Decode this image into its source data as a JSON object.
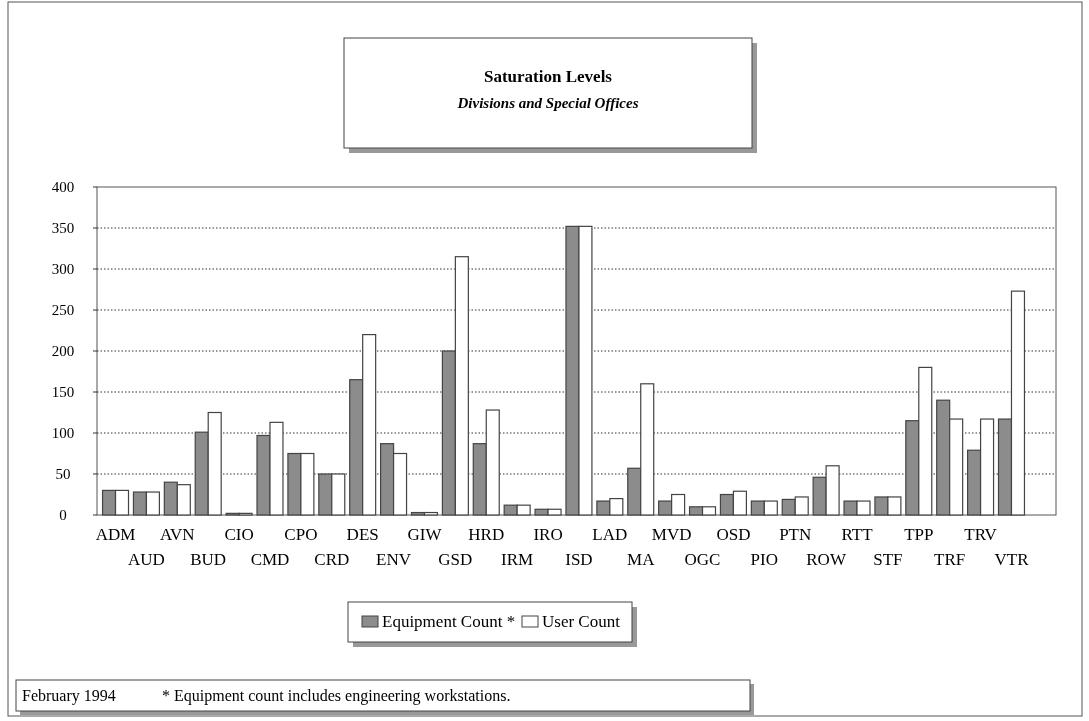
{
  "chart_data": {
    "type": "bar",
    "title": "Saturation Levels",
    "subtitle": "Divisions and Special Offices",
    "categories": [
      "ADM",
      "AUD",
      "AVN",
      "BUD",
      "CIO",
      "CMD",
      "CPO",
      "CRD",
      "DES",
      "ENV",
      "GIW",
      "GSD",
      "HRD",
      "IRM",
      "IRO",
      "ISD",
      "LAD",
      "MA",
      "MVD",
      "OGC",
      "OSD",
      "PIO",
      "PTN",
      "ROW",
      "RTT",
      "STF",
      "TPP",
      "TRF",
      "TRV",
      "VTR"
    ],
    "series": [
      {
        "name": "Equipment Count *",
        "color": "#8c8c8c",
        "values": [
          30,
          28,
          40,
          101,
          2,
          97,
          75,
          50,
          165,
          87,
          3,
          200,
          87,
          12,
          7,
          352,
          17,
          57,
          17,
          10,
          25,
          17,
          19,
          46,
          17,
          22,
          115,
          140,
          79,
          117
        ]
      },
      {
        "name": "User Count",
        "color": "#ffffff",
        "values": [
          30,
          28,
          37,
          125,
          2,
          113,
          75,
          50,
          220,
          75,
          3,
          315,
          128,
          12,
          7,
          352,
          20,
          160,
          25,
          10,
          29,
          17,
          22,
          60,
          17,
          22,
          180,
          117,
          117,
          273
        ]
      }
    ],
    "ylim": [
      0,
      400
    ],
    "yticks": [
      0,
      50,
      100,
      150,
      200,
      250,
      300,
      350,
      400
    ],
    "grid": "y",
    "legend": "bottom",
    "annotations": [
      "February 1994",
      "* Equipment count includes engineering workstations."
    ]
  }
}
